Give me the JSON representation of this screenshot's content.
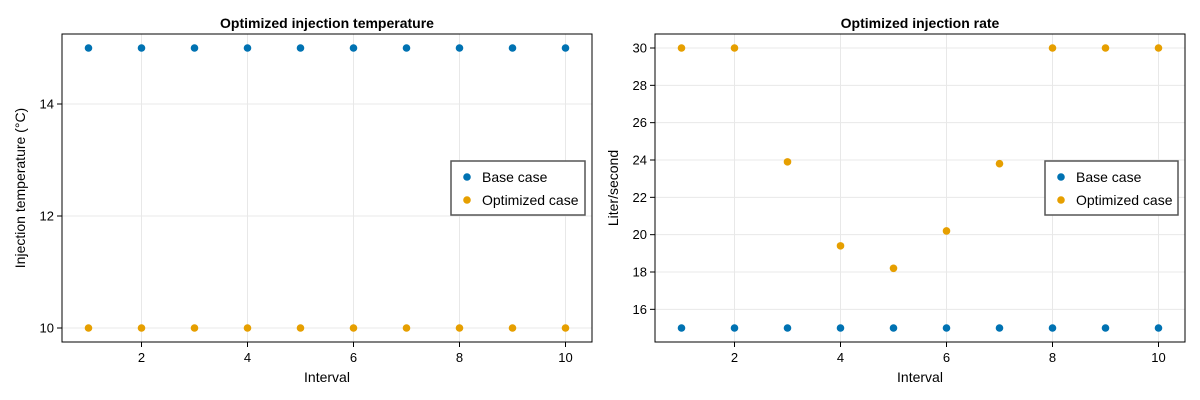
{
  "chart_data": [
    {
      "type": "scatter",
      "title": "Optimized injection temperature",
      "xlabel": "Interval",
      "ylabel": "Injection temperature (°C)",
      "xlim": [
        0.5,
        10.5
      ],
      "ylim": [
        9.75,
        15.25
      ],
      "xticks": [
        2,
        4,
        6,
        8,
        10
      ],
      "yticks": [
        10,
        12,
        14
      ],
      "grid": true,
      "legend_position": "right",
      "x": [
        1,
        2,
        3,
        4,
        5,
        6,
        7,
        8,
        9,
        10
      ],
      "series": [
        {
          "name": "Base case",
          "color": "#0072b2",
          "values": [
            15,
            15,
            15,
            15,
            15,
            15,
            15,
            15,
            15,
            15
          ]
        },
        {
          "name": "Optimized case",
          "color": "#e69f00",
          "values": [
            10,
            10,
            10,
            10,
            10,
            10,
            10,
            10,
            10,
            10
          ]
        }
      ]
    },
    {
      "type": "scatter",
      "title": "Optimized injection rate",
      "xlabel": "Interval",
      "ylabel": "Liter/second",
      "xlim": [
        0.5,
        10.5
      ],
      "ylim": [
        14.25,
        30.75
      ],
      "xticks": [
        2,
        4,
        6,
        8,
        10
      ],
      "yticks": [
        16,
        18,
        20,
        22,
        24,
        26,
        28,
        30
      ],
      "grid": true,
      "legend_position": "right",
      "x": [
        1,
        2,
        3,
        4,
        5,
        6,
        7,
        8,
        9,
        10
      ],
      "series": [
        {
          "name": "Base case",
          "color": "#0072b2",
          "values": [
            15,
            15,
            15,
            15,
            15,
            15,
            15,
            15,
            15,
            15
          ]
        },
        {
          "name": "Optimized case",
          "color": "#e69f00",
          "values": [
            30,
            30,
            23.9,
            19.4,
            18.2,
            20.2,
            23.8,
            30,
            30,
            30
          ]
        }
      ]
    }
  ]
}
